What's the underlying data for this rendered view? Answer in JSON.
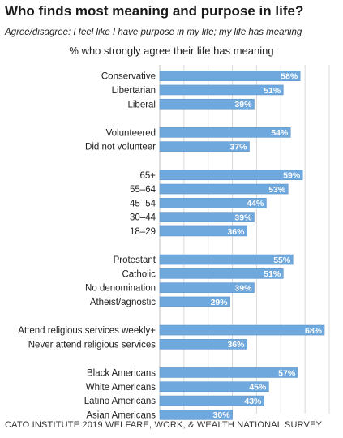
{
  "title": "Who finds most meaning and purpose in life?",
  "subtitle": "Agree/disagree: I feel like I have purpose in my life; my life has meaning",
  "source": "CATO INSTITUTE 2019 WELFARE, WORK, & WEALTH NATIONAL SURVEY",
  "colors": {
    "bar": "#6fa8dc",
    "bar_edge": "#5b95cc",
    "grid": "#d9d9d9",
    "label_text": "#ffffff"
  },
  "chart_data": {
    "type": "bar",
    "orientation": "horizontal",
    "title": "% who strongly agree their life has meaning",
    "xlim": [
      0,
      70
    ],
    "grid": true,
    "value_suffix": "%",
    "groups": [
      {
        "categories": [
          "Conservative",
          "Libertarian",
          "Liberal"
        ],
        "values": [
          58,
          51,
          39
        ]
      },
      {
        "categories": [
          "Volunteered",
          "Did not volunteer"
        ],
        "values": [
          54,
          37
        ]
      },
      {
        "categories": [
          "65+",
          "55–64",
          "45–54",
          "30–44",
          "18–29"
        ],
        "values": [
          59,
          53,
          44,
          39,
          36
        ]
      },
      {
        "categories": [
          "Protestant",
          "Catholic",
          "No denomination",
          "Atheist/agnostic"
        ],
        "values": [
          55,
          51,
          39,
          29
        ]
      },
      {
        "categories": [
          "Attend religious services weekly+",
          "Never attend religious services"
        ],
        "values": [
          68,
          36
        ]
      },
      {
        "categories": [
          "Black Americans",
          "White Americans",
          "Latino Americans",
          "Asian Americans"
        ],
        "values": [
          57,
          45,
          43,
          30
        ]
      }
    ]
  }
}
